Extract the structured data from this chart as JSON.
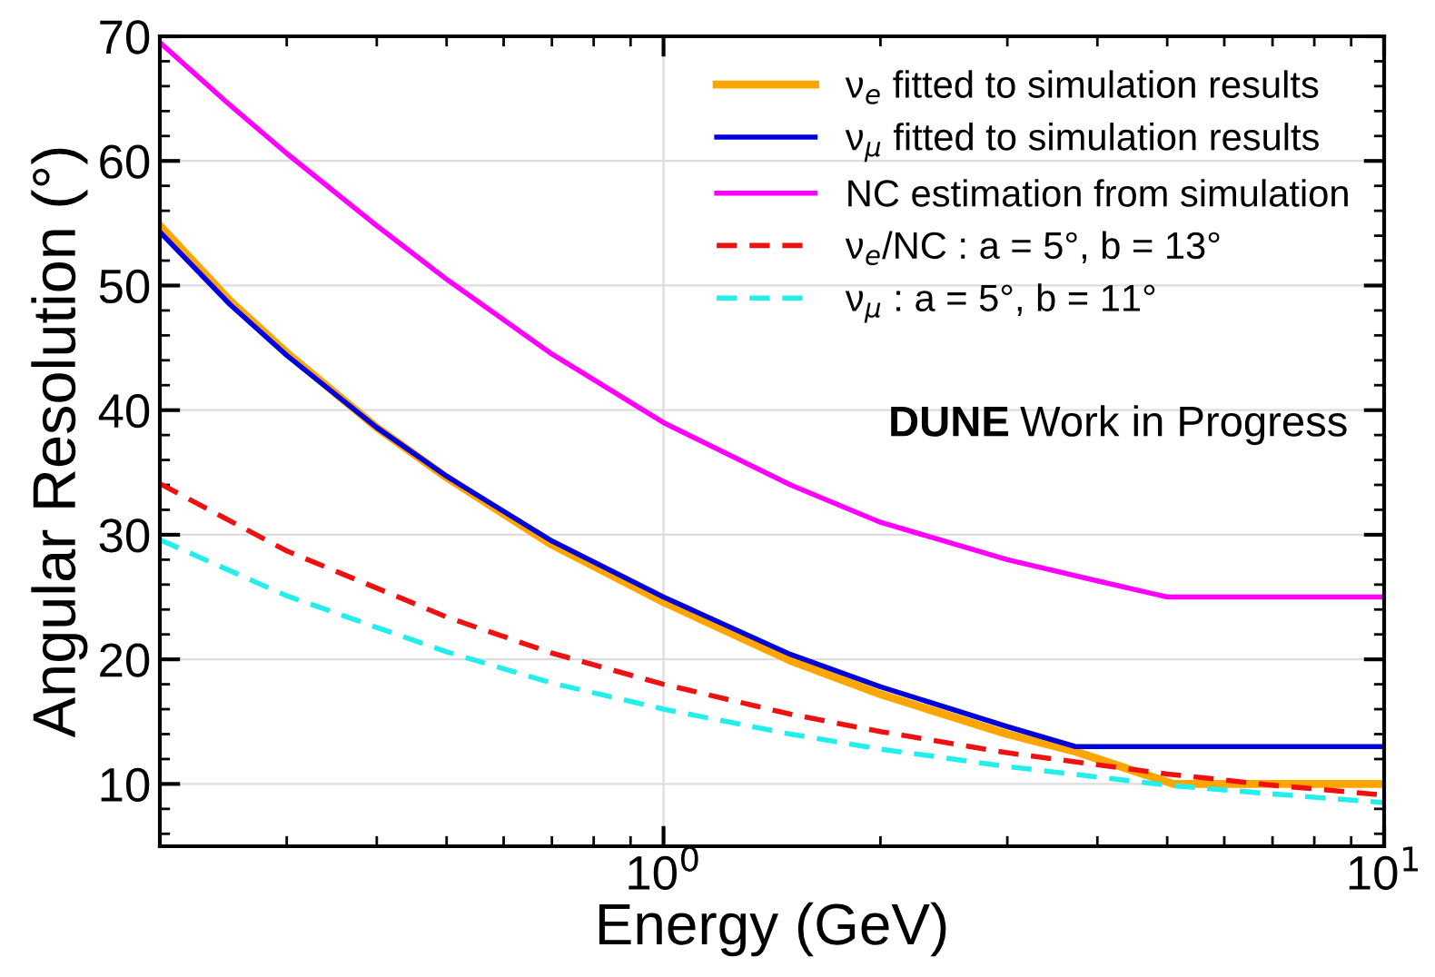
{
  "chart_data": {
    "type": "line",
    "xlabel": "Energy (GeV)",
    "ylabel": "Angular Resolution (°)",
    "log": "x",
    "xlim": [
      0.2,
      10
    ],
    "xticks": [
      {
        "value": 1,
        "label": "10$^{0}$"
      },
      {
        "value": 10,
        "label": "10$^{1}$"
      }
    ],
    "ylim": [
      5,
      70
    ],
    "yticks": [
      10,
      20,
      30,
      40,
      50,
      60,
      70
    ],
    "grid": true,
    "legend": "top right",
    "marker": "none",
    "annotations": [
      "DUNE",
      "Work in Progress"
    ],
    "series": [
      {
        "name": "ν$_{e}$ fitted to simulation results",
        "color": "#ffa500",
        "line_style": "solid",
        "x": [
          0.2,
          0.25,
          0.3,
          0.4,
          0.5,
          0.7,
          1,
          1.5,
          2,
          3,
          3.73,
          5.1,
          10
        ],
        "values": [
          54.8,
          48.8,
          44.6,
          38.6,
          34.6,
          29.2,
          24.6,
          19.9,
          17.2,
          14.0,
          12.6,
          10.0,
          10.0
        ]
      },
      {
        "name": "ν$_{μ}$ fitted to simulation results",
        "color": "#0000dd",
        "line_style": "solid",
        "x": [
          0.2,
          0.25,
          0.3,
          0.4,
          0.5,
          0.7,
          1,
          1.5,
          2,
          3,
          3.73,
          10
        ],
        "values": [
          54.3,
          48.5,
          44.4,
          38.6,
          34.7,
          29.5,
          25.0,
          20.4,
          17.8,
          14.6,
          13.0,
          13.0
        ]
      },
      {
        "name": "NC estimation from simulation",
        "color": "#ff00ff",
        "line_style": "solid",
        "x": [
          0.2,
          0.25,
          0.3,
          0.4,
          0.5,
          0.7,
          1,
          1.5,
          2,
          3,
          4,
          5,
          10
        ],
        "values": [
          69.5,
          64.5,
          60.6,
          54.8,
          50.5,
          44.5,
          39.0,
          34.0,
          31.0,
          28.0,
          26.3,
          25.0,
          25.0
        ]
      },
      {
        "name": "ν$_{e}$/NC : a = 5°, b = 13°",
        "color": "#ee1111",
        "line_style": "dashed",
        "x": [
          0.2,
          0.3,
          0.5,
          0.7,
          1,
          1.5,
          2,
          3,
          5,
          7,
          10
        ],
        "values": [
          34.1,
          28.7,
          23.4,
          20.5,
          18.0,
          15.6,
          14.2,
          12.5,
          10.8,
          9.9,
          9.1
        ]
      },
      {
        "name": "ν$_{μ}$ : a = 5°, b = 11°",
        "color": "#22eeee",
        "line_style": "dashed",
        "x": [
          0.2,
          0.3,
          0.5,
          0.7,
          1,
          1.5,
          2,
          3,
          5,
          7,
          10
        ],
        "values": [
          29.6,
          25.1,
          20.6,
          18.1,
          16.0,
          14.0,
          12.8,
          11.4,
          9.9,
          9.2,
          8.5
        ]
      }
    ]
  }
}
